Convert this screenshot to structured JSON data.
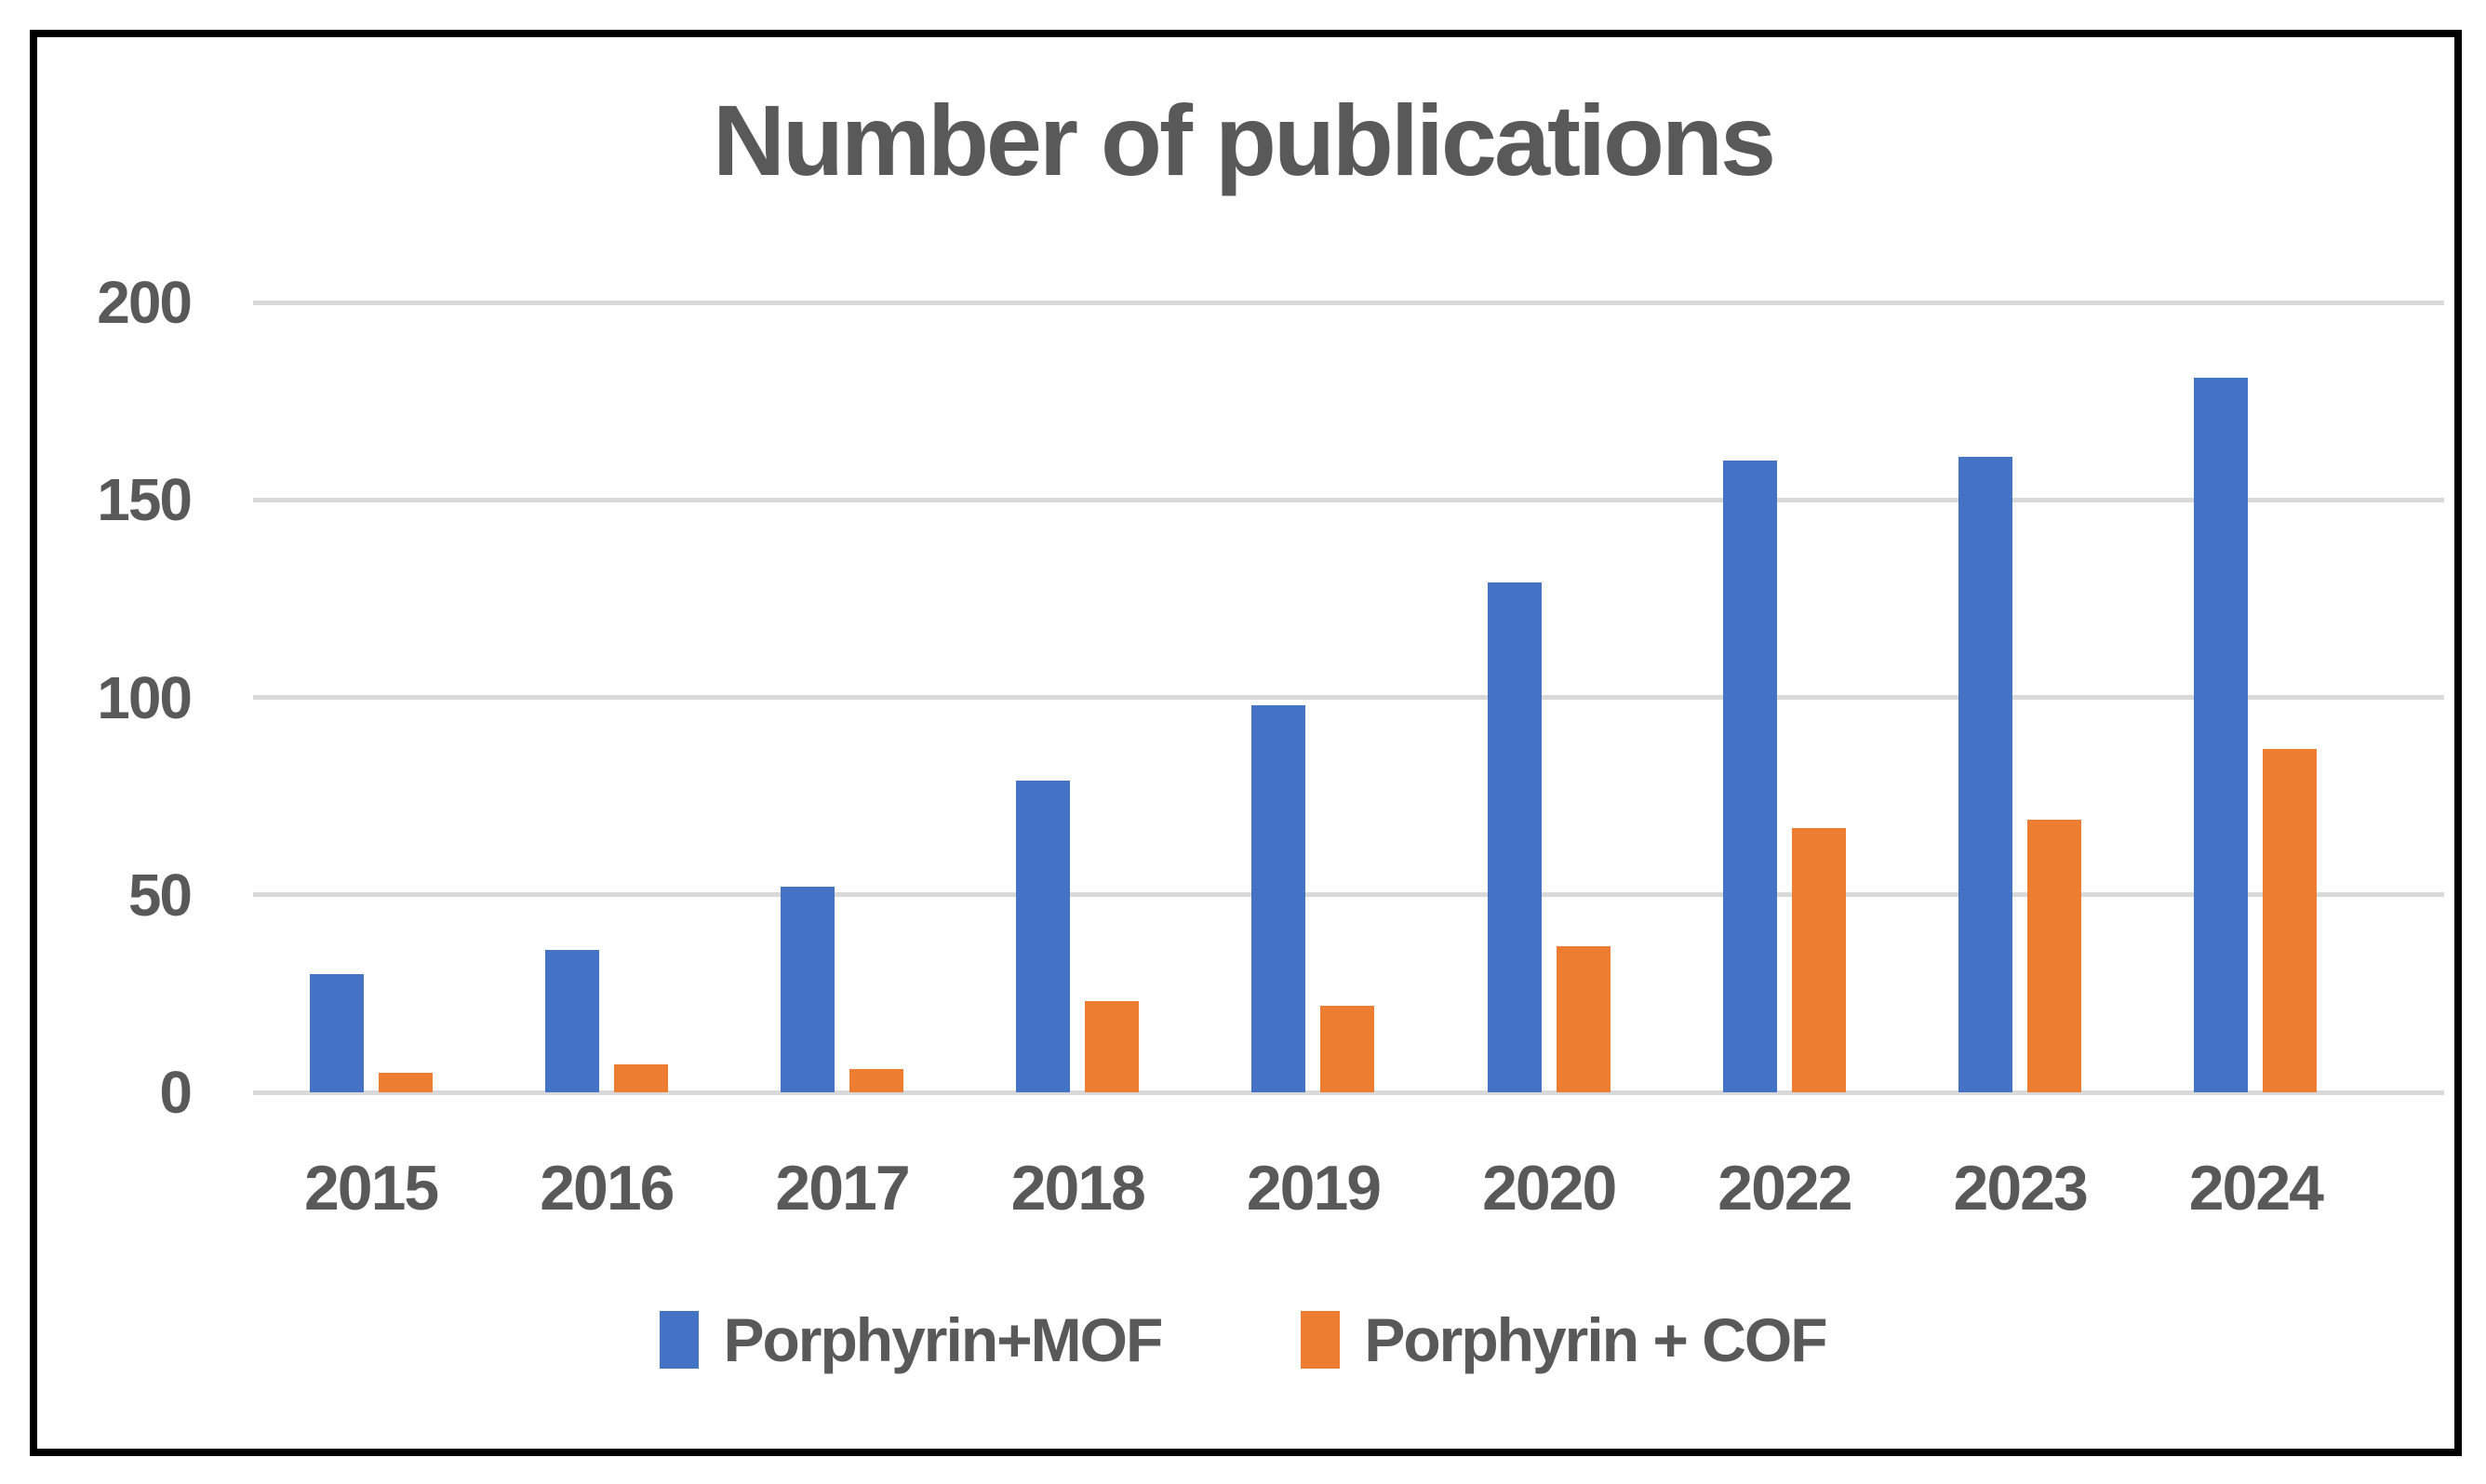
{
  "title": "Number of publications",
  "chart_data": {
    "type": "bar",
    "title": "Number of publications",
    "categories": [
      "2015",
      "2016",
      "2017",
      "2018",
      "2019",
      "2020",
      "2022",
      "2023",
      "2024"
    ],
    "series": [
      {
        "name": "Porphyrin+MOF",
        "color": "#4472C4",
        "values": [
          30,
          36,
          52,
          79,
          98,
          129,
          160,
          161,
          181
        ]
      },
      {
        "name": "Porphyrin + COF",
        "color": "#ED7D31",
        "values": [
          5,
          7,
          6,
          23,
          22,
          37,
          67,
          69,
          87
        ]
      }
    ],
    "xlabel": "",
    "ylabel": "",
    "ylim": [
      0,
      200
    ],
    "yticks": [
      0,
      50,
      100,
      150,
      200
    ],
    "grid": true,
    "legend_position": "bottom",
    "gridline_color": "#D9D9D9",
    "text_color": "#595959",
    "frame_color": "#000000"
  }
}
